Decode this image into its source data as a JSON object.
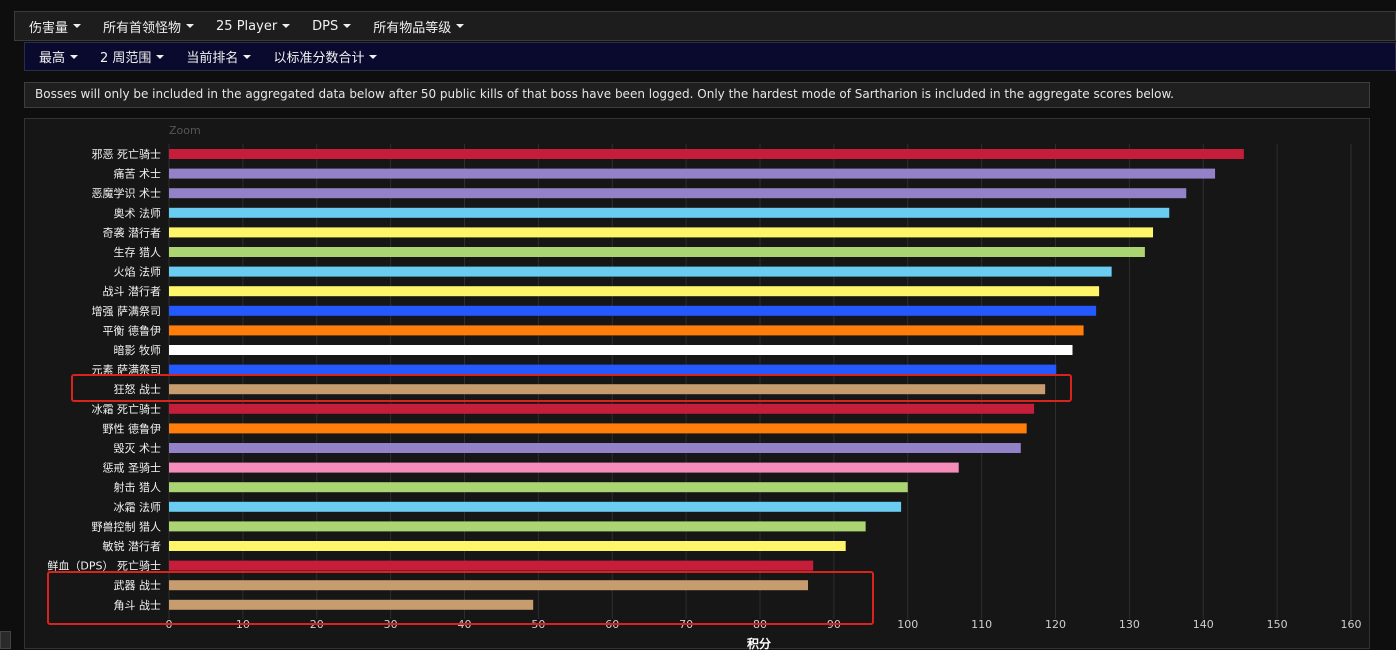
{
  "filters_row1": [
    "伤害量",
    "所有首领怪物",
    "25 Player",
    "DPS",
    "所有物品等级"
  ],
  "filters_row2": [
    "最高",
    "2 周范围",
    "当前排名",
    "以标准分数合计"
  ],
  "notice": "Bosses will only be included in the aggregated data below after 50 public kills of that boss have been logged. Only the hardest mode of Sartharion is included in the aggregate scores below.",
  "chart_data": {
    "type": "bar",
    "orientation": "horizontal",
    "zoom_label": "Zoom",
    "xlabel": "积分",
    "xlim": [
      0,
      160
    ],
    "xticks": [
      0,
      10,
      20,
      30,
      40,
      50,
      60,
      70,
      80,
      90,
      100,
      110,
      120,
      130,
      140,
      150,
      160
    ],
    "grid": true,
    "categories": [
      "邪恶 死亡骑士",
      "痛苦 术士",
      "恶魔学识 术士",
      "奥术 法师",
      "奇袭 潜行者",
      "生存 猎人",
      "火焰 法师",
      "战斗 潜行者",
      "增强 萨满祭司",
      "平衡 德鲁伊",
      "暗影 牧师",
      "元素 萨满祭司",
      "狂怒 战士",
      "冰霜 死亡骑士",
      "野性 德鲁伊",
      "毁灭 术士",
      "惩戒 圣骑士",
      "射击 猎人",
      "冰霜 法师",
      "野兽控制 猎人",
      "敏锐 潜行者",
      "鲜血（DPS） 死亡骑士",
      "武器 战士",
      "角斗 战士"
    ],
    "values": [
      145.5,
      141.6,
      137.7,
      135.4,
      133.2,
      132.1,
      127.6,
      125.9,
      125.5,
      123.8,
      122.3,
      120.1,
      118.6,
      117.1,
      116.1,
      115.3,
      106.9,
      100.0,
      99.1,
      94.3,
      91.6,
      87.2,
      86.5,
      49.3
    ],
    "colors": [
      "#c41e3a",
      "#9482c9",
      "#9482c9",
      "#69ccf0",
      "#fff569",
      "#abd473",
      "#69ccf0",
      "#fff569",
      "#2459ff",
      "#ff7d0a",
      "#ffffff",
      "#2459ff",
      "#c79c6e",
      "#c41e3a",
      "#ff7d0a",
      "#9482c9",
      "#f58cba",
      "#abd473",
      "#69ccf0",
      "#abd473",
      "#fff569",
      "#c41e3a",
      "#c79c6e",
      "#c79c6e"
    ],
    "highlight_color": "#d8241c",
    "highlighted": [
      "狂怒 战士",
      "武器 战士",
      "角斗 战士"
    ]
  }
}
